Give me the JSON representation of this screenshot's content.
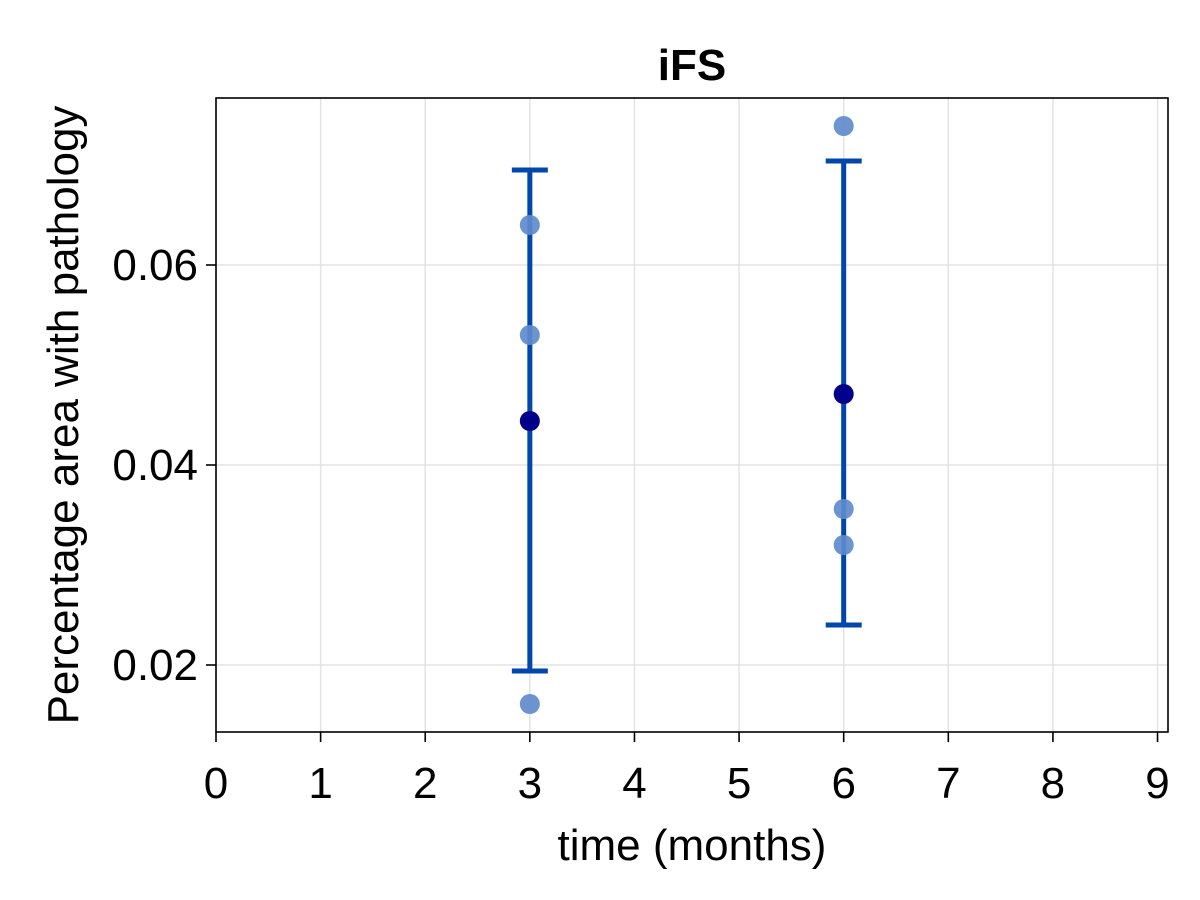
{
  "chart_data": {
    "type": "scatter",
    "title": "iFS",
    "xlabel": "time (months)",
    "ylabel": "Percentage area with pathology",
    "xlim": [
      0,
      9.1
    ],
    "ylim": [
      0.0133,
      0.0767
    ],
    "xticks": [
      0,
      1,
      2,
      3,
      4,
      5,
      6,
      7,
      8,
      9
    ],
    "yticks": [
      0.02,
      0.04,
      0.06
    ],
    "ytick_labels": [
      "0.02",
      "0.04",
      "0.06"
    ],
    "grid": true,
    "series": [
      {
        "kind": "points",
        "color": "#5e8bcc",
        "points": [
          {
            "x": 3,
            "y": 0.064
          },
          {
            "x": 3,
            "y": 0.053
          },
          {
            "x": 3,
            "y": 0.0161
          },
          {
            "x": 6,
            "y": 0.0739
          },
          {
            "x": 6,
            "y": 0.0356
          },
          {
            "x": 6,
            "y": 0.032
          }
        ]
      },
      {
        "kind": "mean",
        "color": "#00008b",
        "points": [
          {
            "x": 3,
            "y": 0.0444
          },
          {
            "x": 6,
            "y": 0.0471
          }
        ]
      },
      {
        "kind": "errorbars",
        "color": "#0047ab",
        "bars": [
          {
            "x": 3,
            "low": 0.0194,
            "high": 0.0695
          },
          {
            "x": 6,
            "low": 0.024,
            "high": 0.0704
          }
        ]
      }
    ]
  }
}
